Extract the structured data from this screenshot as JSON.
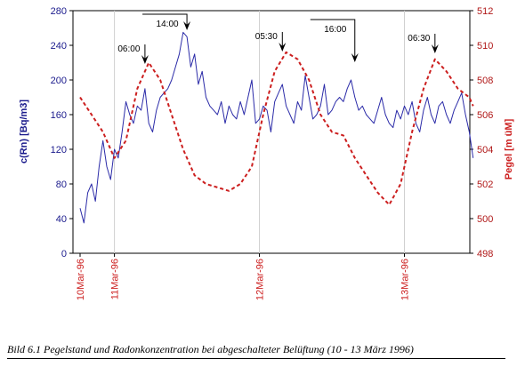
{
  "chart_data": {
    "type": "line",
    "title": "",
    "ylabel_left": "c(Rn) [Bq/m3]",
    "ylabel_right": "Pegel [m üM]",
    "ylim_left": [
      0,
      280
    ],
    "ylim_right": [
      498,
      512
    ],
    "yticks_left": [
      0,
      40,
      80,
      120,
      160,
      200,
      240,
      280
    ],
    "yticks_right": [
      498,
      500,
      502,
      504,
      506,
      508,
      510,
      512
    ],
    "xlim_hours": [
      0,
      104
    ],
    "x_ticks": [
      {
        "label": "10Mar-96",
        "hour": 0
      },
      {
        "label": "11Mar-96",
        "hour": 9
      },
      {
        "label": "12Mar-96",
        "hour": 47
      },
      {
        "label": "13Mar-96",
        "hour": 85
      }
    ],
    "grid": "vertical-at-date-ticks",
    "series": [
      {
        "name": "",
        "axis": "left",
        "style": "solid",
        "color": "#2b2ba8",
        "x": [
          0,
          1,
          2,
          3,
          4,
          5,
          6,
          7,
          8,
          9,
          10,
          11,
          12,
          13,
          14,
          15,
          16,
          17,
          18,
          19,
          20,
          21,
          22,
          23,
          24,
          25,
          26,
          27,
          28,
          29,
          30,
          31,
          32,
          33,
          34,
          35,
          36,
          37,
          38,
          39,
          40,
          41,
          42,
          43,
          44,
          45,
          46,
          47,
          48,
          49,
          50,
          51,
          52,
          53,
          54,
          55,
          56,
          57,
          58,
          59,
          60,
          61,
          62,
          63,
          64,
          65,
          66,
          67,
          68,
          69,
          70,
          71,
          72,
          73,
          74,
          75,
          76,
          77,
          78,
          79,
          80,
          81,
          82,
          83,
          84,
          85,
          86,
          87,
          88,
          89,
          90,
          91,
          92,
          93,
          94,
          95,
          96,
          97,
          98,
          99,
          100,
          101,
          102,
          103
        ],
        "y": [
          52,
          35,
          70,
          80,
          60,
          100,
          130,
          100,
          85,
          120,
          110,
          140,
          175,
          160,
          150,
          170,
          165,
          190,
          150,
          140,
          165,
          180,
          185,
          190,
          200,
          215,
          230,
          255,
          250,
          215,
          230,
          195,
          210,
          180,
          170,
          165,
          160,
          175,
          150,
          170,
          160,
          155,
          175,
          160,
          180,
          200,
          150,
          155,
          170,
          165,
          140,
          175,
          185,
          195,
          170,
          160,
          150,
          175,
          165,
          205,
          180,
          155,
          160,
          170,
          195,
          160,
          165,
          175,
          180,
          175,
          190,
          200,
          180,
          165,
          170,
          160,
          155,
          150,
          165,
          180,
          160,
          150,
          145,
          165,
          155,
          170,
          160,
          175,
          150,
          140,
          165,
          180,
          160,
          150,
          170,
          175,
          160,
          150,
          165,
          175,
          185,
          160,
          140,
          110
        ]
      },
      {
        "name": "",
        "axis": "right",
        "style": "dashed",
        "color": "#cc1f1f",
        "x": [
          0,
          3,
          6,
          9,
          12,
          15,
          18,
          21,
          24,
          27,
          30,
          33,
          36,
          39,
          42,
          45,
          48,
          51,
          54,
          57,
          60,
          63,
          66,
          69,
          72,
          75,
          78,
          81,
          84,
          87,
          90,
          93,
          96,
          99,
          102,
          103
        ],
        "y": [
          507.0,
          506.0,
          505.0,
          503.5,
          504.5,
          507.5,
          509.0,
          508.0,
          506.0,
          504.0,
          502.5,
          502.0,
          501.8,
          501.6,
          502.0,
          503.0,
          506.0,
          508.5,
          509.6,
          509.2,
          508.0,
          506.0,
          505.0,
          504.8,
          503.5,
          502.5,
          501.5,
          500.8,
          502.0,
          505.0,
          507.5,
          509.2,
          508.5,
          507.5,
          507.0,
          506.5
        ]
      }
    ],
    "annotations": [
      {
        "label": "06:00",
        "hour": 17,
        "type": "arrow-down"
      },
      {
        "label": "14:00",
        "hour": 28,
        "type": "bracket-arrow"
      },
      {
        "label": "05:30",
        "hour": 53,
        "type": "arrow-down"
      },
      {
        "label": "16:00",
        "hour": 72,
        "type": "bracket-arrow"
      },
      {
        "label": "06:30",
        "hour": 93,
        "type": "arrow-down"
      }
    ]
  },
  "caption": "Bild 6.1  Pegelstand und Radonkonzentration bei abgeschalteter Belüftung (10 - 13 März 1996)"
}
